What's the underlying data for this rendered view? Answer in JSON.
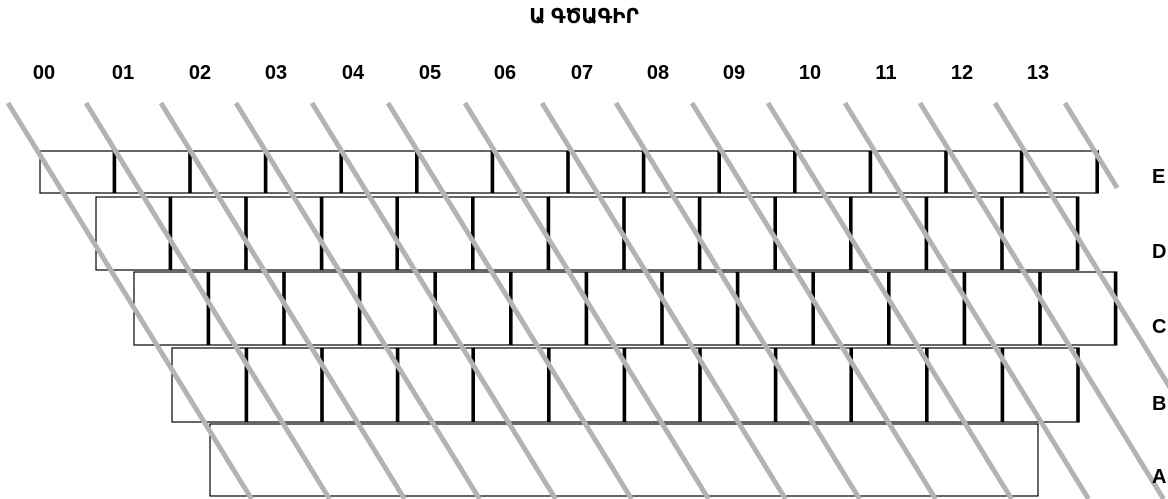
{
  "title": "Ա ԳԾԱԳԻՐ",
  "columns": [
    "00",
    "01",
    "02",
    "03",
    "04",
    "05",
    "06",
    "07",
    "08",
    "09",
    "10",
    "11",
    "12",
    "13"
  ],
  "rows": [
    "E",
    "D",
    "C",
    "B",
    "A"
  ],
  "colors": {
    "key_fill": "#ffffff",
    "key_border": "#000000",
    "stripe": "#b3b3b3",
    "text": "#000000"
  }
}
